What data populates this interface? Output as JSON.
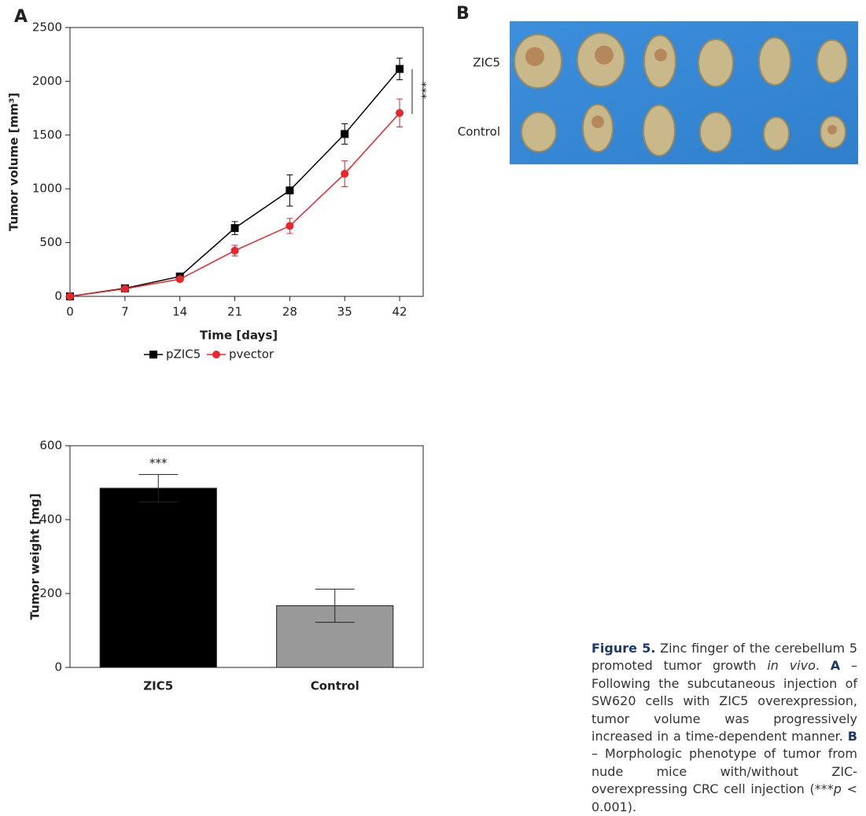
{
  "panels": {
    "a": "A",
    "b": "B"
  },
  "chart_data": [
    {
      "type": "line",
      "xlabel": "Time [days]",
      "ylabel": "Tumor volume [mm³]",
      "x": [
        0,
        7,
        14,
        21,
        28,
        35,
        42
      ],
      "xlim": [
        0,
        45
      ],
      "xticks": [
        0,
        7,
        14,
        21,
        28,
        35,
        42
      ],
      "ylim": [
        0,
        2500
      ],
      "yticks": [
        0,
        500,
        1000,
        1500,
        2000,
        2500
      ],
      "annotation": "***",
      "legend": "bottom",
      "series": [
        {
          "name": "pZIC5",
          "color": "#000000",
          "marker": "square",
          "values": [
            0,
            75,
            185,
            635,
            985,
            1510,
            2115
          ],
          "errors": [
            0,
            10,
            15,
            60,
            145,
            95,
            100
          ]
        },
        {
          "name": "pvector",
          "color": "#e8262b",
          "marker": "circle",
          "values": [
            0,
            70,
            160,
            425,
            655,
            1140,
            1705
          ],
          "errors": [
            0,
            10,
            15,
            50,
            70,
            120,
            130
          ]
        }
      ]
    },
    {
      "type": "bar",
      "ylabel": "Tumor weight [mg]",
      "categories": [
        "ZIC5",
        "Control"
      ],
      "values": [
        485,
        167
      ],
      "errors": [
        37,
        45
      ],
      "colors": [
        "#000000",
        "#999999"
      ],
      "ylim": [
        0,
        600
      ],
      "yticks": [
        0,
        200,
        400,
        600
      ],
      "annotation": "***"
    }
  ],
  "photo": {
    "rows": [
      "ZIC5",
      "Control"
    ]
  },
  "caption": [
    "Figure 5.",
    " Zinc finger of the cerebellum 5 promoted tumor growth ",
    "in vivo",
    ". ",
    "A",
    " – Following the subcutaneous injection of SW620 cells with ZIC5 overexpression, tumor volume was progressively increased in a time-dependent manner. ",
    "B",
    " – Morphologic phenotype of tumor from nude mice with/without ZIC-overexpressing CRC cell injection (***",
    "p",
    " < 0.001)."
  ]
}
